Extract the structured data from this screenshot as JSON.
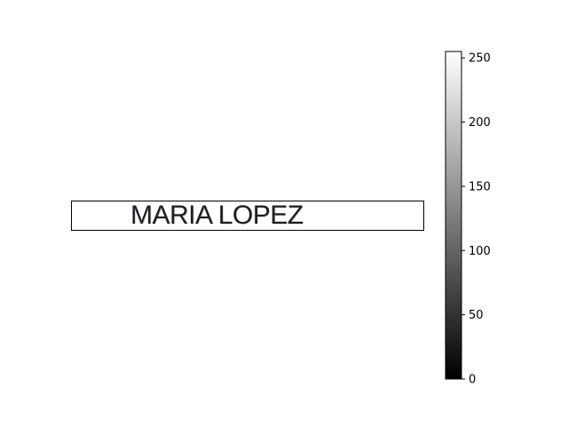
{
  "image": {
    "text": "MARIA LOPEZ"
  },
  "chart_data": {
    "type": "heatmap",
    "colormap": "gray",
    "colorbar": {
      "range": [
        0,
        255
      ],
      "ticks": [
        0,
        50,
        100,
        150,
        200,
        250
      ],
      "tick_labels": [
        "0",
        "50",
        "100",
        "150",
        "200",
        "250"
      ]
    }
  }
}
